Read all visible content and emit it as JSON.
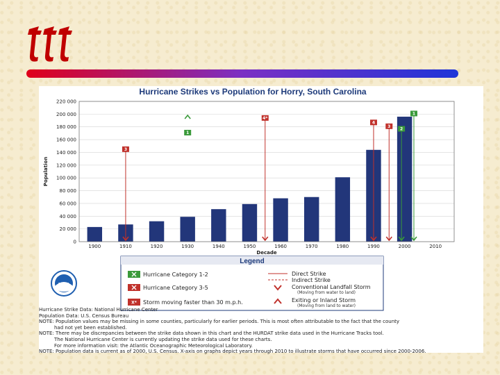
{
  "chart_data": {
    "type": "bar",
    "title": "Hurricane Strikes vs Population for Horry, South Carolina",
    "xlabel": "Decade",
    "ylabel": "Population",
    "ylim": [
      0,
      220000
    ],
    "yticks": [
      0,
      20000,
      40000,
      60000,
      80000,
      100000,
      120000,
      140000,
      160000,
      180000,
      200000,
      220000
    ],
    "ytick_labels": [
      "0",
      "20 000",
      "40 000",
      "60 000",
      "80 000",
      "100 000",
      "120 000",
      "140 000",
      "160 000",
      "180 000",
      "200 000",
      "220 000"
    ],
    "categories": [
      "1900",
      "1910",
      "1920",
      "1930",
      "1940",
      "1950",
      "1960",
      "1970",
      "1980",
      "1990",
      "2000",
      "2010"
    ],
    "values": [
      23000,
      27000,
      32000,
      39000,
      51000,
      59000,
      68000,
      70000,
      101000,
      144000,
      196000,
      null
    ],
    "bar_color": "#22367a",
    "strikes": [
      {
        "decade": "1910",
        "offset": 0.0,
        "type": "direct",
        "label": "3",
        "category": "3-5",
        "marker_y": 145000,
        "base": "land"
      },
      {
        "decade": "1950",
        "offset": 0.5,
        "type": "direct",
        "label": "4*",
        "category": "3-5",
        "marker_y": 194000,
        "base": "land"
      },
      {
        "decade": "1990",
        "offset": 0.0,
        "type": "direct",
        "label": "4",
        "category": "3-5",
        "marker_y": 187000,
        "base": "land"
      },
      {
        "decade": "1990",
        "offset": 0.5,
        "type": "direct",
        "label": "3",
        "category": "3-5",
        "marker_y": 181000,
        "base": "land"
      },
      {
        "decade": "2000",
        "offset": -0.1,
        "type": "direct",
        "label": "2",
        "category": "1-2",
        "marker_y": 177000,
        "base": "land"
      },
      {
        "decade": "2000",
        "offset": 0.3,
        "type": "direct",
        "label": "1",
        "category": "1-2",
        "marker_y": 201000,
        "base": "land"
      }
    ],
    "exiting_markers": [
      {
        "decade": "1930",
        "offset": 0.0,
        "label": "1",
        "marker_y": 171000,
        "arrow_y": 196000
      }
    ]
  },
  "legend": {
    "title": "Legend",
    "items": {
      "cat12": "Hurricane Category 1-2",
      "cat35": "Hurricane Category 3-5",
      "fast": "Storm moving faster than 30 m.p.h.",
      "direct": "Direct Strike",
      "indirect": "Indirect Strike",
      "conventional": "Conventional Landfall Storm",
      "conventional_sub": "(Moving from water to land)",
      "exiting": "Exiting or Inland Storm",
      "exiting_sub": "(Moving from land to water)"
    },
    "marker_labels": {
      "fast": "X*"
    }
  },
  "logo_text": "NOAA",
  "colors": {
    "green": "#3a9a3a",
    "red": "#c0312b",
    "accent": "#7b2fc4"
  },
  "notes": [
    "Hurricane Strike Data: National Hurricane Center",
    "Population Data: U.S. Census Bureau",
    "NOTE: Population values may be missing in some counties, particularly for earlier periods. This is most often attributable to the fact that the county",
    "had not yet been established.",
    "NOTE: There may be discrepancies between the strike data shown in this chart and the HURDAT strike data used in the Hurricane Tracks tool.",
    "The National Hurricane Center is currently updating the strike data used for these charts.",
    "For more information visit: the Atlantic Oceanographic Meteorological Laboratory.",
    "NOTE: Population data is current as of 2000, U.S. Census. X-axis on graphs depict years through 2010 to illustrate storms that have occurred since 2000-2006."
  ]
}
